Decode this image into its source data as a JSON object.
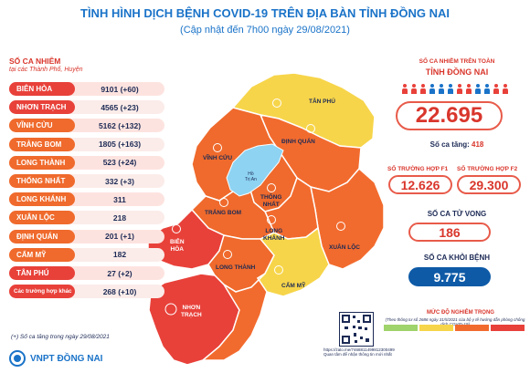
{
  "header": {
    "title": "TÌNH HÌNH DỊCH BỆNH COVID-19 TRÊN ĐỊA BÀN TỈNH ĐỒNG NAI",
    "subtitle": "(Cập nhật đến 7h00 ngày 29/08/2021)"
  },
  "districts": {
    "heading": "SỐ CA NHIỄM",
    "subheading": "tại các Thành Phố, Huyện",
    "rows": [
      {
        "name": "BIÊN HÒA",
        "value": "9101 (+60)",
        "color": "#e8413a"
      },
      {
        "name": "NHƠN TRẠCH",
        "value": "4565 (+23)",
        "color": "#e8413a"
      },
      {
        "name": "VĨNH CỬU",
        "value": "5162 (+132)",
        "color": "#ef6a2c"
      },
      {
        "name": "TRẢNG BOM",
        "value": "1805 (+163)",
        "color": "#ef6a2c"
      },
      {
        "name": "LONG THÀNH",
        "value": "523 (+24)",
        "color": "#ef6a2c"
      },
      {
        "name": "THỐNG NHẤT",
        "value": "332 (+3)",
        "color": "#ef6a2c"
      },
      {
        "name": "LONG KHÁNH",
        "value": "311",
        "color": "#ef6a2c"
      },
      {
        "name": "XUÂN LỘC",
        "value": "218",
        "color": "#ef6a2c"
      },
      {
        "name": "ĐỊNH QUÁN",
        "value": "201 (+1)",
        "color": "#ef6a2c"
      },
      {
        "name": "CẨM MỸ",
        "value": "182",
        "color": "#ef6a2c"
      },
      {
        "name": "TÂN PHÚ",
        "value": "27 (+2)",
        "color": "#e8413a"
      },
      {
        "name": "Các trường hợp khác",
        "value": "268 (+10)",
        "color": "#e8413a"
      }
    ],
    "note": "(+) Số ca tăng trong ngày 29/08/2021"
  },
  "map": {
    "labels": {
      "tan_phu": "TÂN PHÚ",
      "dinh_quan": "ĐỊNH QUÁN",
      "vinh_cuu": "VĨNH CỬU",
      "lake": "Hồ\nTrị An",
      "thong_nhat": "THỐNG\nNHẤT",
      "trang_bom": "TRẢNG BOM",
      "long_khanh": "LONG\nKHÁNH",
      "xuan_loc": "XUÂN LỘC",
      "bien_hoa": "BIÊN\nHÒA",
      "long_thanh": "LONG THÀNH",
      "cam_my": "CẨM MỸ",
      "nhon_trach": "NHƠN\nTRẠCH"
    },
    "colors": {
      "red": "#e8413a",
      "orange": "#f26b2e",
      "yellow": "#f7d54a",
      "lake": "#8ed3f2"
    }
  },
  "summary": {
    "total_heading_1": "SỐ CA NHIỄM TRÊN TOÀN",
    "total_heading_2": "TỈNH ĐỒNG NAI",
    "total": "22.695",
    "increase_label": "Số ca tăng:",
    "increase_value": "418",
    "f1_label": "SỐ TRƯỜNG HỢP F1",
    "f1_value": "12.626",
    "f2_label": "SỐ TRƯỜNG HỢP F2",
    "f2_value": "29.300",
    "deaths_label": "SỐ CA TỬ VONG",
    "deaths_value": "186",
    "recovered_label": "SỐ CA KHỎI BỆNH",
    "recovered_value": "9.775"
  },
  "qr_caption": "https://zalo.me/7468811499812300499\nQuan tâm để nhận thông tin mới nhất",
  "legend": {
    "title": "MỨC ĐỘ NGHIÊM TRỌNG",
    "subtitle": "(Theo thông tư số 2686 ngày 31/5/2021 của bộ y tế hướng dẫn phòng chống dịch COVID-19)",
    "levels": [
      {
        "label": "",
        "color": "#9fd36b"
      },
      {
        "label": "",
        "color": "#f7d54a"
      },
      {
        "label": "",
        "color": "#f26b2e"
      },
      {
        "label": "",
        "color": "#e8413a"
      }
    ]
  },
  "brand": {
    "name": "VNPT ĐỒNG NAI"
  }
}
